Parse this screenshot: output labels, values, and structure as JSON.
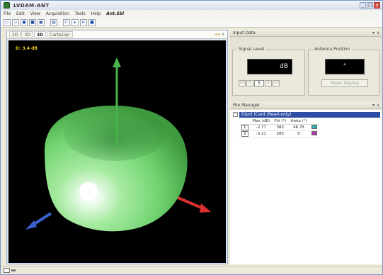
{
  "window": {
    "title": "LVDAM-ANT",
    "buttons": {
      "minimize": "_",
      "restore": "□",
      "close": "x"
    }
  },
  "menu": {
    "items": [
      "File",
      "Edit",
      "View",
      "Acquisition",
      "Tools",
      "Help"
    ],
    "brand": "Ant.Sbl"
  },
  "toolbar": {
    "icons": [
      "new-file-icon",
      "open-icon",
      "info-icon",
      "save-icon",
      "save-as-icon",
      "print-icon",
      "marker-icon",
      "play-icon",
      "step-icon",
      "stop-icon"
    ]
  },
  "viewer": {
    "tabs": [
      "2D",
      "3D",
      "3D",
      "Cartesian"
    ],
    "active_tab_index": 2,
    "nav": {
      "prev": "◂",
      "next": "▸",
      "close": "x"
    },
    "db_readout": "D: 3.4 dB",
    "colors": {
      "lobe": "#6fd36f",
      "axis_x": "#d93030",
      "axis_y": "#49b449",
      "axis_z": "#3a5fc9"
    }
  },
  "input_data": {
    "header": "Input Data",
    "pin": "▾",
    "close": "x",
    "signal_level": {
      "title": "Signal Level",
      "display": "dB",
      "buttons": [
        "<<",
        "<",
        ">",
        ">>"
      ],
      "value": "5"
    },
    "antenna_position": {
      "title": "Antenna Position",
      "display": "°",
      "reset_label": "Reset Display"
    }
  },
  "file_manager": {
    "header": "File Manager",
    "pin": "▾",
    "close": "x",
    "file_label": "Dipol (Card (Read-only)",
    "expand": "−",
    "columns": [
      "",
      "Max (dB)",
      "Phi (°)",
      "theta (°)",
      ""
    ],
    "rows": [
      {
        "id": "1",
        "max": "-2.77",
        "phi": "382",
        "theta": "46.75",
        "color": "#33b3b3"
      },
      {
        "id": "2",
        "max": "-3.21",
        "phi": "285",
        "theta": "0",
        "color": "#b33ab3"
      }
    ]
  }
}
